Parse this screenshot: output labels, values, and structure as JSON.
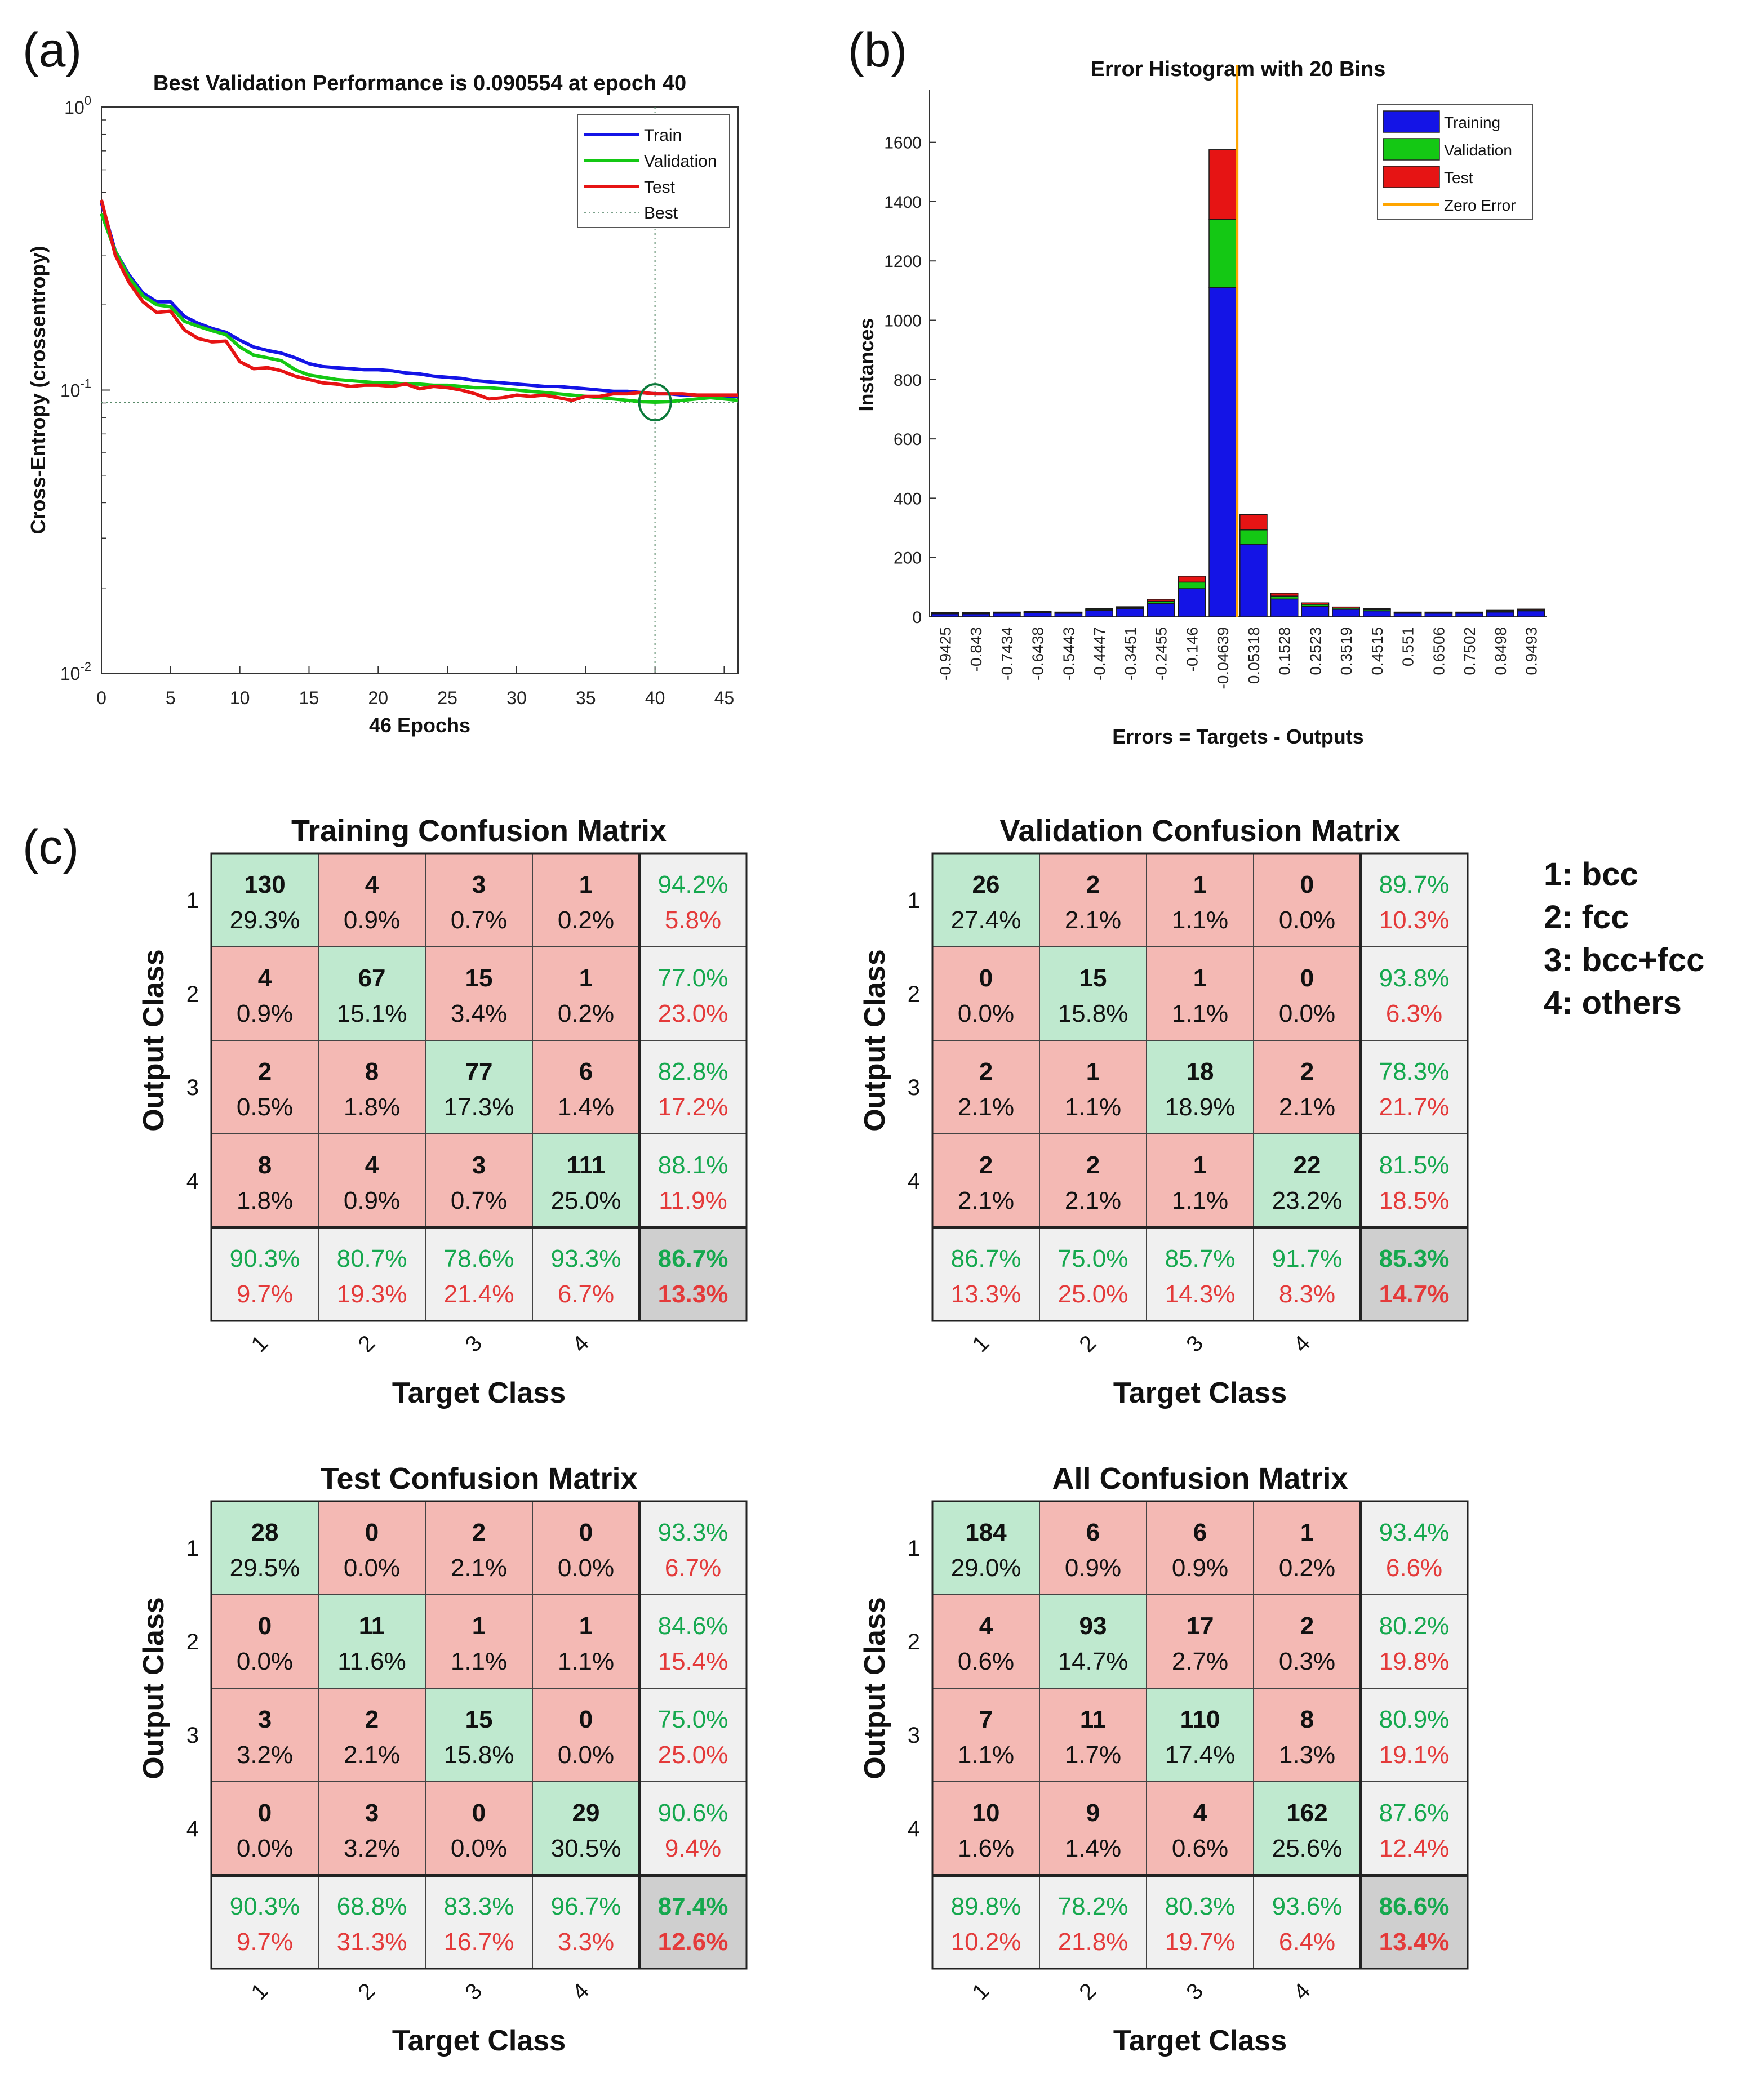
{
  "panels": {
    "a": "(a)",
    "b": "(b)",
    "c": "(c)"
  },
  "colors": {
    "train": "#1414e6",
    "validation": "#14c814",
    "test": "#e61414",
    "zero_error": "#ffa500",
    "best_circle": "#0b7a3a",
    "diag_cell": "#bfe9cf",
    "off_cell": "#f4b9b4",
    "stat_cell": "#f0f0f0",
    "total_cell": "#cfcfcf",
    "pct_good": "#15a84e",
    "pct_bad": "#e43a3a"
  },
  "chart_data": [
    {
      "type": "line",
      "title": "Best Validation Performance is 0.090554 at epoch 40",
      "xlabel": "46 Epochs",
      "ylabel": "Cross-Entropy  (crossentropy)",
      "yscale": "log",
      "xlim": [
        0,
        46
      ],
      "ylim": [
        0.01,
        1
      ],
      "xticks": [
        0,
        5,
        10,
        15,
        20,
        25,
        30,
        35,
        40,
        45
      ],
      "yticks": [
        {
          "value": 1,
          "base": "10",
          "exp": "0"
        },
        {
          "value": 0.1,
          "base": "10",
          "exp": "-1"
        },
        {
          "value": 0.01,
          "base": "10",
          "exp": "-2"
        }
      ],
      "grid": false,
      "legend": "top-right",
      "best": {
        "epoch": 40,
        "value": 0.090554,
        "label": "Best"
      },
      "series": [
        {
          "name": "Train",
          "color": "#1414e6",
          "x": [
            0,
            1,
            2,
            3,
            4,
            5,
            6,
            7,
            8,
            9,
            10,
            11,
            12,
            13,
            14,
            15,
            16,
            17,
            18,
            19,
            20,
            21,
            22,
            23,
            24,
            25,
            26,
            27,
            28,
            29,
            30,
            31,
            32,
            33,
            34,
            35,
            36,
            37,
            38,
            39,
            40,
            41,
            42,
            43,
            44,
            45,
            46
          ],
          "y": [
            0.46,
            0.31,
            0.255,
            0.22,
            0.205,
            0.205,
            0.182,
            0.172,
            0.165,
            0.16,
            0.15,
            0.142,
            0.138,
            0.135,
            0.13,
            0.124,
            0.121,
            0.12,
            0.119,
            0.118,
            0.118,
            0.117,
            0.115,
            0.114,
            0.112,
            0.111,
            0.11,
            0.108,
            0.107,
            0.106,
            0.105,
            0.104,
            0.103,
            0.103,
            0.102,
            0.101,
            0.1,
            0.099,
            0.099,
            0.098,
            0.097,
            0.097,
            0.096,
            0.096,
            0.095,
            0.095,
            0.095
          ]
        },
        {
          "name": "Validation",
          "color": "#14c814",
          "x": [
            0,
            1,
            2,
            3,
            4,
            5,
            6,
            7,
            8,
            9,
            10,
            11,
            12,
            13,
            14,
            15,
            16,
            17,
            18,
            19,
            20,
            21,
            22,
            23,
            24,
            25,
            26,
            27,
            28,
            29,
            30,
            31,
            32,
            33,
            34,
            35,
            36,
            37,
            38,
            39,
            40,
            41,
            42,
            43,
            44,
            45,
            46
          ],
          "y": [
            0.42,
            0.31,
            0.25,
            0.215,
            0.2,
            0.197,
            0.175,
            0.168,
            0.162,
            0.157,
            0.142,
            0.133,
            0.13,
            0.127,
            0.118,
            0.113,
            0.111,
            0.109,
            0.108,
            0.107,
            0.106,
            0.106,
            0.105,
            0.105,
            0.104,
            0.104,
            0.103,
            0.102,
            0.102,
            0.101,
            0.1,
            0.099,
            0.098,
            0.097,
            0.096,
            0.095,
            0.094,
            0.093,
            0.092,
            0.091,
            0.0906,
            0.091,
            0.092,
            0.093,
            0.094,
            0.093,
            0.092
          ]
        },
        {
          "name": "Test",
          "color": "#e61414",
          "x": [
            0,
            1,
            2,
            3,
            4,
            5,
            6,
            7,
            8,
            9,
            10,
            11,
            12,
            13,
            14,
            15,
            16,
            17,
            18,
            19,
            20,
            21,
            22,
            23,
            24,
            25,
            26,
            27,
            28,
            29,
            30,
            31,
            32,
            33,
            34,
            35,
            36,
            37,
            38,
            39,
            40,
            41,
            42,
            43,
            44,
            45,
            46
          ],
          "y": [
            0.47,
            0.3,
            0.24,
            0.205,
            0.188,
            0.19,
            0.163,
            0.152,
            0.148,
            0.149,
            0.126,
            0.119,
            0.12,
            0.117,
            0.112,
            0.109,
            0.106,
            0.105,
            0.103,
            0.104,
            0.104,
            0.103,
            0.105,
            0.101,
            0.103,
            0.102,
            0.1,
            0.097,
            0.093,
            0.094,
            0.096,
            0.095,
            0.096,
            0.094,
            0.092,
            0.095,
            0.095,
            0.097,
            0.097,
            0.098,
            0.097,
            0.097,
            0.097,
            0.096,
            0.096,
            0.096,
            0.096
          ]
        }
      ]
    },
    {
      "type": "bar",
      "stacked": true,
      "title": "Error Histogram with 20 Bins",
      "xlabel": "Errors = Targets - Outputs",
      "ylabel": "Instances",
      "ylim": [
        0,
        1700
      ],
      "yticks": [
        0,
        200,
        400,
        600,
        800,
        1000,
        1200,
        1400,
        1600
      ],
      "legend": "top-right",
      "zero_error": {
        "x": 0,
        "label": "Zero Error",
        "color": "#ffa500"
      },
      "categories": [
        "-0.9425",
        "-0.843",
        "-0.7434",
        "-0.6438",
        "-0.5443",
        "-0.4447",
        "-0.3451",
        "-0.2455",
        "-0.146",
        "-0.04639",
        "0.05318",
        "0.1528",
        "0.2523",
        "0.3519",
        "0.4515",
        "0.551",
        "0.6506",
        "0.7502",
        "0.8498",
        "0.9493"
      ],
      "series": [
        {
          "name": "Training",
          "color": "#1414e6",
          "values": [
            10,
            10,
            12,
            14,
            12,
            22,
            28,
            45,
            95,
            1110,
            245,
            60,
            35,
            25,
            20,
            12,
            12,
            12,
            16,
            20
          ]
        },
        {
          "name": "Validation",
          "color": "#14c814",
          "values": [
            2,
            2,
            2,
            2,
            2,
            3,
            3,
            7,
            22,
            230,
            48,
            10,
            7,
            4,
            4,
            2,
            2,
            2,
            3,
            3
          ]
        },
        {
          "name": "Test",
          "color": "#e61414",
          "values": [
            2,
            2,
            2,
            2,
            2,
            3,
            3,
            7,
            20,
            235,
            52,
            10,
            5,
            4,
            4,
            2,
            2,
            2,
            3,
            3
          ]
        }
      ]
    },
    {
      "type": "table",
      "title": "Training Confusion Matrix",
      "xlabel": "Target Class",
      "ylabel": "Output Class",
      "classes": [
        "1",
        "2",
        "3",
        "4"
      ],
      "counts": [
        [
          "130",
          "4",
          "3",
          "1"
        ],
        [
          "4",
          "67",
          "15",
          "1"
        ],
        [
          "2",
          "8",
          "77",
          "6"
        ],
        [
          "8",
          "4",
          "3",
          "111"
        ]
      ],
      "percents": [
        [
          "29.3%",
          "0.9%",
          "0.7%",
          "0.2%"
        ],
        [
          "0.9%",
          "15.1%",
          "3.4%",
          "0.2%"
        ],
        [
          "0.5%",
          "1.8%",
          "17.3%",
          "1.4%"
        ],
        [
          "1.8%",
          "0.9%",
          "0.7%",
          "25.0%"
        ]
      ],
      "row_stats": [
        [
          "94.2%",
          "5.8%"
        ],
        [
          "77.0%",
          "23.0%"
        ],
        [
          "82.8%",
          "17.2%"
        ],
        [
          "88.1%",
          "11.9%"
        ]
      ],
      "col_stats": [
        [
          "90.3%",
          "9.7%"
        ],
        [
          "80.7%",
          "19.3%"
        ],
        [
          "78.6%",
          "21.4%"
        ],
        [
          "93.3%",
          "6.7%"
        ]
      ],
      "total": [
        "86.7%",
        "13.3%"
      ]
    },
    {
      "type": "table",
      "title": "Validation Confusion Matrix",
      "xlabel": "Target Class",
      "ylabel": "Output Class",
      "classes": [
        "1",
        "2",
        "3",
        "4"
      ],
      "counts": [
        [
          "26",
          "2",
          "1",
          "0"
        ],
        [
          "0",
          "15",
          "1",
          "0"
        ],
        [
          "2",
          "1",
          "18",
          "2"
        ],
        [
          "2",
          "2",
          "1",
          "22"
        ]
      ],
      "percents": [
        [
          "27.4%",
          "2.1%",
          "1.1%",
          "0.0%"
        ],
        [
          "0.0%",
          "15.8%",
          "1.1%",
          "0.0%"
        ],
        [
          "2.1%",
          "1.1%",
          "18.9%",
          "2.1%"
        ],
        [
          "2.1%",
          "2.1%",
          "1.1%",
          "23.2%"
        ]
      ],
      "row_stats": [
        [
          "89.7%",
          "10.3%"
        ],
        [
          "93.8%",
          "6.3%"
        ],
        [
          "78.3%",
          "21.7%"
        ],
        [
          "81.5%",
          "18.5%"
        ]
      ],
      "col_stats": [
        [
          "86.7%",
          "13.3%"
        ],
        [
          "75.0%",
          "25.0%"
        ],
        [
          "85.7%",
          "14.3%"
        ],
        [
          "91.7%",
          "8.3%"
        ]
      ],
      "total": [
        "85.3%",
        "14.7%"
      ]
    },
    {
      "type": "table",
      "title": "Test Confusion Matrix",
      "xlabel": "Target Class",
      "ylabel": "Output Class",
      "classes": [
        "1",
        "2",
        "3",
        "4"
      ],
      "counts": [
        [
          "28",
          "0",
          "2",
          "0"
        ],
        [
          "0",
          "11",
          "1",
          "1"
        ],
        [
          "3",
          "2",
          "15",
          "0"
        ],
        [
          "0",
          "3",
          "0",
          "29"
        ]
      ],
      "percents": [
        [
          "29.5%",
          "0.0%",
          "2.1%",
          "0.0%"
        ],
        [
          "0.0%",
          "11.6%",
          "1.1%",
          "1.1%"
        ],
        [
          "3.2%",
          "2.1%",
          "15.8%",
          "0.0%"
        ],
        [
          "0.0%",
          "3.2%",
          "0.0%",
          "30.5%"
        ]
      ],
      "row_stats": [
        [
          "93.3%",
          "6.7%"
        ],
        [
          "84.6%",
          "15.4%"
        ],
        [
          "75.0%",
          "25.0%"
        ],
        [
          "90.6%",
          "9.4%"
        ]
      ],
      "col_stats": [
        [
          "90.3%",
          "9.7%"
        ],
        [
          "68.8%",
          "31.3%"
        ],
        [
          "83.3%",
          "16.7%"
        ],
        [
          "96.7%",
          "3.3%"
        ]
      ],
      "total": [
        "87.4%",
        "12.6%"
      ]
    },
    {
      "type": "table",
      "title": "All Confusion Matrix",
      "xlabel": "Target Class",
      "ylabel": "Output Class",
      "classes": [
        "1",
        "2",
        "3",
        "4"
      ],
      "counts": [
        [
          "184",
          "6",
          "6",
          "1"
        ],
        [
          "4",
          "93",
          "17",
          "2"
        ],
        [
          "7",
          "11",
          "110",
          "8"
        ],
        [
          "10",
          "9",
          "4",
          "162"
        ]
      ],
      "percents": [
        [
          "29.0%",
          "0.9%",
          "0.9%",
          "0.2%"
        ],
        [
          "0.6%",
          "14.7%",
          "2.7%",
          "0.3%"
        ],
        [
          "1.1%",
          "1.7%",
          "17.4%",
          "1.3%"
        ],
        [
          "1.6%",
          "1.4%",
          "0.6%",
          "25.6%"
        ]
      ],
      "row_stats": [
        [
          "93.4%",
          "6.6%"
        ],
        [
          "80.2%",
          "19.8%"
        ],
        [
          "80.9%",
          "19.1%"
        ],
        [
          "87.6%",
          "12.4%"
        ]
      ],
      "col_stats": [
        [
          "89.8%",
          "10.2%"
        ],
        [
          "78.2%",
          "21.8%"
        ],
        [
          "80.3%",
          "19.7%"
        ],
        [
          "93.6%",
          "6.4%"
        ]
      ],
      "total": [
        "86.6%",
        "13.4%"
      ]
    }
  ],
  "class_key": [
    "1: bcc",
    "2: fcc",
    "3: bcc+fcc",
    "4: others"
  ]
}
